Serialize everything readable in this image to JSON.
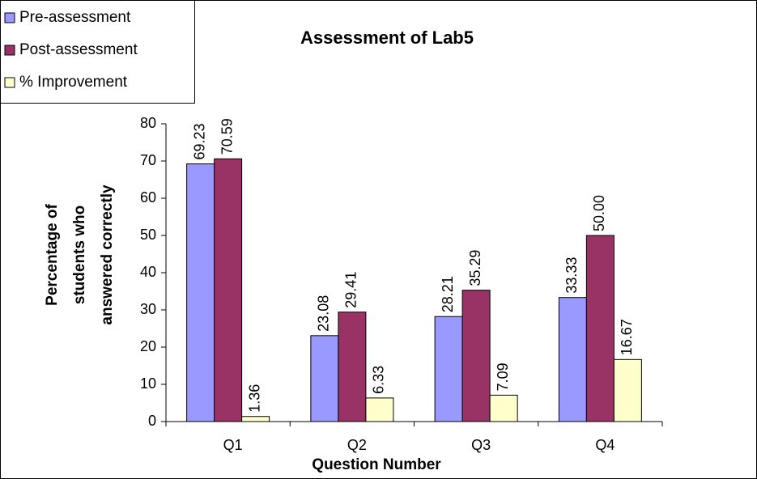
{
  "chart_data": {
    "type": "bar",
    "title": "Assessment of Lab5",
    "xlabel": "Question Number",
    "ylabel": [
      "Percentage of",
      "students who",
      "answered correctly"
    ],
    "categories": [
      "Q1",
      "Q2",
      "Q3",
      "Q4"
    ],
    "series": [
      {
        "name": "Pre-assessment",
        "color": "#9999ff",
        "values": [
          69.23,
          23.08,
          28.21,
          33.33
        ],
        "value_labels": [
          "69.23",
          "23.08",
          "28.21",
          "33.33"
        ]
      },
      {
        "name": "Post-assessment",
        "color": "#993366",
        "values": [
          70.59,
          29.41,
          35.29,
          50
        ],
        "value_labels": [
          "70.59",
          "29.41",
          "35.29",
          "50.00"
        ]
      },
      {
        "name": "% Improvement",
        "color": "#ffffcc",
        "values": [
          1.36,
          6.33,
          7.09,
          16.67
        ],
        "value_labels": [
          "1.36",
          "6.33",
          "7.09",
          "16.67"
        ]
      }
    ],
    "ylim": [
      0,
      80
    ],
    "yticks": [
      0,
      10,
      20,
      30,
      40,
      50,
      60,
      70,
      80
    ],
    "grid": false,
    "legend": "top-left"
  }
}
